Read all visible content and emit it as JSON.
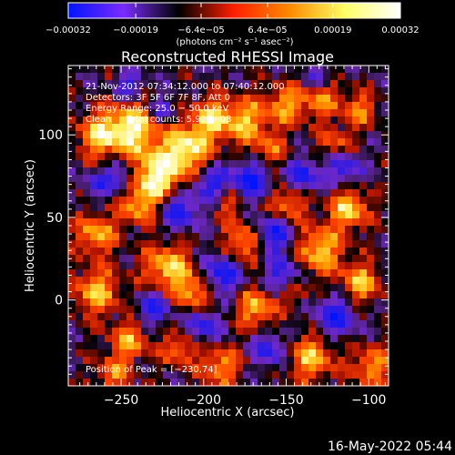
{
  "chart_data": {
    "type": "heatmap",
    "title": "Reconstructed RHESSI Image",
    "xlabel": "Heliocentric X (arcsec)",
    "ylabel": "Heliocentric Y (arcsec)",
    "xlim": [
      -282,
      -88
    ],
    "ylim": [
      -52,
      142
    ],
    "x_ticks": [
      {
        "value": -250,
        "label": "−250"
      },
      {
        "value": -200,
        "label": "−200"
      },
      {
        "value": -150,
        "label": "−150"
      },
      {
        "value": -100,
        "label": "−100"
      }
    ],
    "y_ticks": [
      {
        "value": 0,
        "label": "0"
      },
      {
        "value": 50,
        "label": "50"
      },
      {
        "value": 100,
        "label": "100"
      }
    ],
    "colorbar": {
      "range": [
        -0.00032,
        0.00032
      ],
      "colors": [
        "#0014ff",
        "#7a2cff",
        "#000000",
        "#ff2000",
        "#ff8a00",
        "#ffff66",
        "#ffffff"
      ],
      "ticks": [
        {
          "value": -0.00032,
          "label": "−0.00032"
        },
        {
          "value": -0.00019,
          "label": "−0.00019"
        },
        {
          "value": -6.4e-05,
          "label": "−6.4e−05"
        },
        {
          "value": 6.4e-05,
          "label": "6.4e−05"
        },
        {
          "value": 0.00019,
          "label": "0.00019"
        },
        {
          "value": 0.00032,
          "label": "0.00032"
        }
      ],
      "unit_label": "(photons cm⁻² s⁻¹ asec⁻²)"
    },
    "annotations": [
      "21-Nov-2012 07:34:12.000 to 07:40:12.000",
      "Detectors: 3F 5F 6F 7F 8F, Att 0",
      "Energy Range: 25.0 − 50.0 keV",
      "Clean     Total counts: 5.92E+03"
    ],
    "peak_label": "Position of Peak = [−230,74]",
    "grid": false
  },
  "footer": {
    "timestamp": "16-May-2022 05:44"
  }
}
